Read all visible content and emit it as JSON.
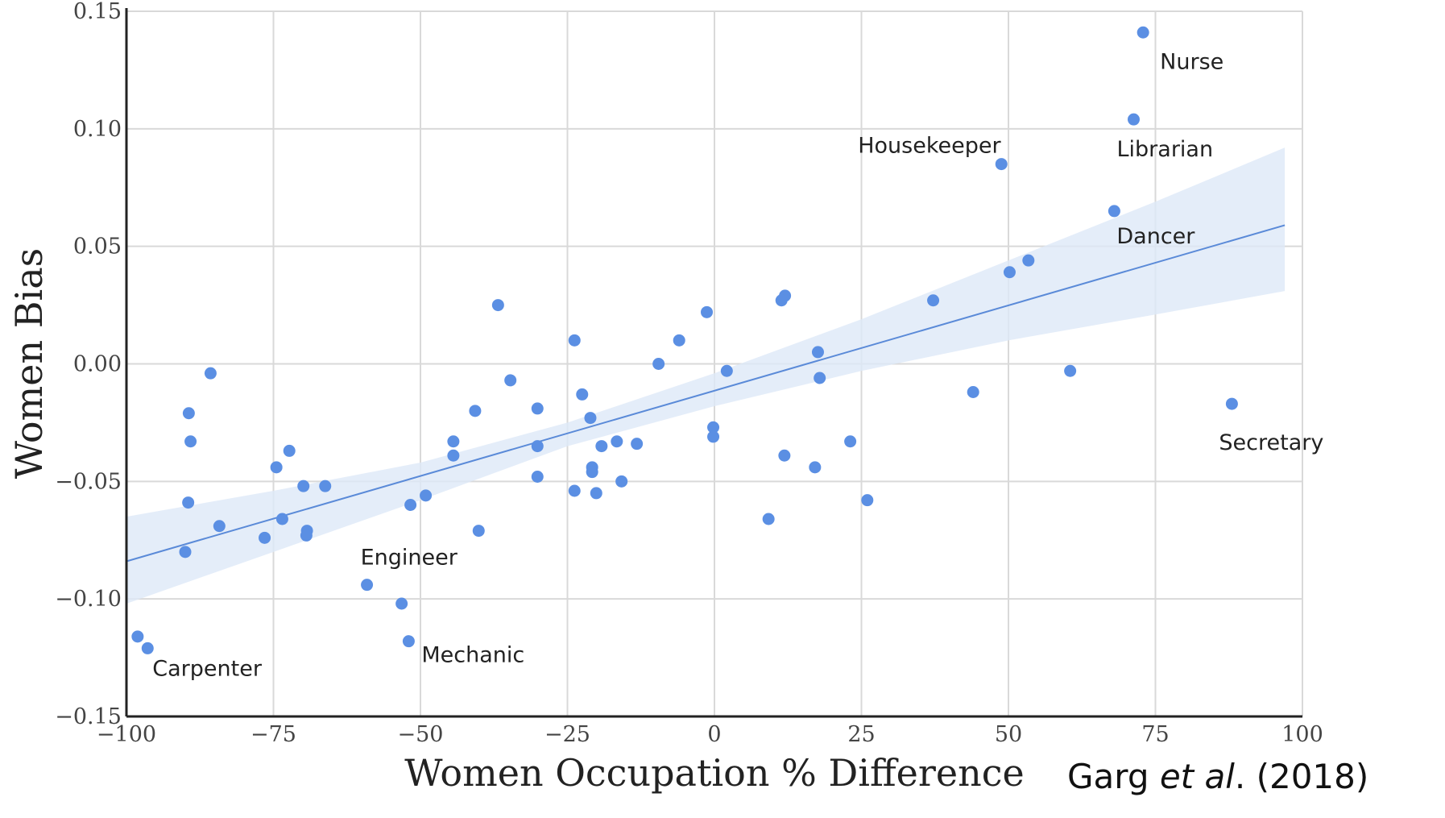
{
  "chart_data": {
    "type": "scatter",
    "xlabel": "Women Occupation % Difference",
    "ylabel": "Women Bias",
    "xlim": [
      -100,
      100
    ],
    "ylim": [
      -0.15,
      0.15
    ],
    "x_ticks": [
      -100,
      -75,
      -50,
      -25,
      0,
      25,
      50,
      75,
      100
    ],
    "x_tick_labels": [
      "−100",
      "−75",
      "−50",
      "−25",
      "0",
      "25",
      "50",
      "75",
      "100"
    ],
    "y_ticks": [
      -0.15,
      -0.1,
      -0.05,
      0.0,
      0.05,
      0.1,
      0.15
    ],
    "y_tick_labels": [
      "−0.15",
      "−0.10",
      "−0.05",
      "0.00",
      "0.05",
      "0.10",
      "0.15"
    ],
    "grid": true,
    "colors": {
      "points": "#5b8fe3",
      "line": "#5a8ad8",
      "band": "#dde8f8",
      "grid": "#d9d9d9",
      "axis": "#222222"
    },
    "points": [
      [
        72.9,
        0.141
      ],
      [
        71.3,
        0.104
      ],
      [
        48.8,
        0.085
      ],
      [
        68.0,
        0.065
      ],
      [
        53.4,
        0.044
      ],
      [
        50.2,
        0.039
      ],
      [
        37.2,
        0.027
      ],
      [
        12.0,
        0.029
      ],
      [
        11.4,
        0.027
      ],
      [
        17.6,
        0.005
      ],
      [
        17.9,
        -0.006
      ],
      [
        44.0,
        -0.012
      ],
      [
        60.5,
        -0.003
      ],
      [
        88.0,
        -0.017
      ],
      [
        23.1,
        -0.033
      ],
      [
        11.9,
        -0.039
      ],
      [
        17.1,
        -0.044
      ],
      [
        26.0,
        -0.058
      ],
      [
        9.2,
        -0.066
      ],
      [
        -1.3,
        0.022
      ],
      [
        -6.0,
        0.01
      ],
      [
        -9.5,
        0.0
      ],
      [
        2.1,
        -0.003
      ],
      [
        -0.2,
        -0.027
      ],
      [
        -0.2,
        -0.031
      ],
      [
        -23.8,
        0.01
      ],
      [
        -22.5,
        -0.013
      ],
      [
        -21.1,
        -0.023
      ],
      [
        -19.2,
        -0.035
      ],
      [
        -16.6,
        -0.033
      ],
      [
        -13.2,
        -0.034
      ],
      [
        -20.8,
        -0.044
      ],
      [
        -20.8,
        -0.046
      ],
      [
        -15.8,
        -0.05
      ],
      [
        -23.8,
        -0.054
      ],
      [
        -20.1,
        -0.055
      ],
      [
        -30.1,
        -0.019
      ],
      [
        -30.1,
        -0.035
      ],
      [
        -30.1,
        -0.048
      ],
      [
        -36.8,
        0.025
      ],
      [
        -34.7,
        -0.007
      ],
      [
        -40.7,
        -0.02
      ],
      [
        -44.4,
        -0.033
      ],
      [
        -44.4,
        -0.039
      ],
      [
        -40.1,
        -0.071
      ],
      [
        -49.1,
        -0.056
      ],
      [
        -51.7,
        -0.06
      ],
      [
        -59.1,
        -0.094
      ],
      [
        -53.2,
        -0.102
      ],
      [
        -52.0,
        -0.118
      ],
      [
        -98.1,
        -0.116
      ],
      [
        -96.4,
        -0.121
      ],
      [
        -85.7,
        -0.004
      ],
      [
        -89.4,
        -0.021
      ],
      [
        -89.1,
        -0.033
      ],
      [
        -89.5,
        -0.059
      ],
      [
        -90.0,
        -0.08
      ],
      [
        -84.2,
        -0.069
      ],
      [
        -76.5,
        -0.074
      ],
      [
        -74.5,
        -0.044
      ],
      [
        -72.3,
        -0.037
      ],
      [
        -73.5,
        -0.066
      ],
      [
        -69.9,
        -0.052
      ],
      [
        -66.2,
        -0.052
      ],
      [
        -69.3,
        -0.071
      ],
      [
        -69.4,
        -0.073
      ]
    ],
    "regression": {
      "x": [
        -100,
        97
      ],
      "y": [
        -0.084,
        0.059
      ]
    },
    "confidence_band": {
      "x": [
        -100,
        -75,
        -50,
        -25,
        0,
        25,
        50,
        75,
        97
      ],
      "lower": [
        -0.102,
        -0.08,
        -0.058,
        -0.035,
        -0.018,
        -0.003,
        0.01,
        0.021,
        0.031
      ],
      "upper": [
        -0.065,
        -0.054,
        -0.042,
        -0.025,
        -0.004,
        0.019,
        0.044,
        0.069,
        0.092
      ]
    },
    "annotations": [
      {
        "label": "Nurse",
        "x": 72.9,
        "y": 0.141
      },
      {
        "label": "Librarian",
        "x": 71.3,
        "y": 0.104
      },
      {
        "label": "Housekeeper",
        "x": 48.8,
        "y": 0.085
      },
      {
        "label": "Dancer",
        "x": 68.0,
        "y": 0.065
      },
      {
        "label": "Secretary",
        "x": 88.0,
        "y": -0.017
      },
      {
        "label": "Engineer",
        "x": -59.1,
        "y": -0.094
      },
      {
        "label": "Mechanic",
        "x": -52.0,
        "y": -0.118
      },
      {
        "label": "Carpenter",
        "x": -96.4,
        "y": -0.121
      }
    ]
  },
  "citation": {
    "author": "Garg ",
    "etal": "et al",
    "rest": ". (2018)"
  }
}
